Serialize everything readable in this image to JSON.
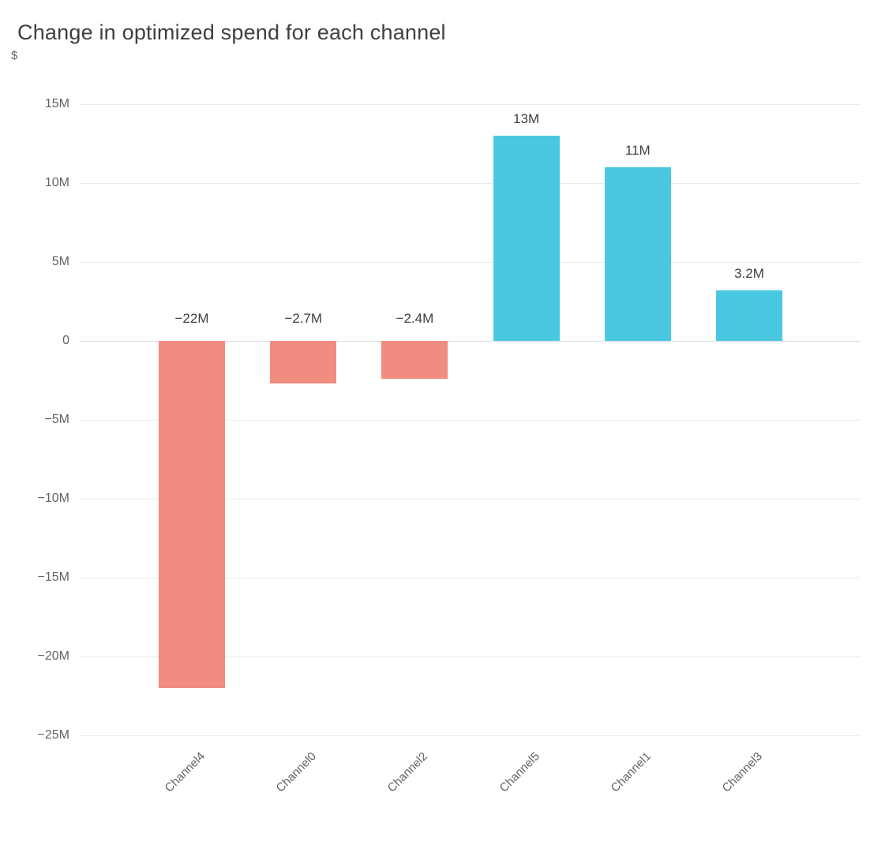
{
  "header": {
    "title": "Change in optimized spend for each channel",
    "y_axis_unit": "$"
  },
  "chart_data": {
    "type": "bar",
    "title": "Change in optimized spend for each channel",
    "xlabel": "",
    "ylabel": "$",
    "categories": [
      "Channel4",
      "Channel0",
      "Channel2",
      "Channel5",
      "Channel1",
      "Channel3"
    ],
    "values": [
      -22,
      -2.7,
      -2.4,
      13,
      11,
      3.2
    ],
    "value_unit": "millions of dollars",
    "bar_labels": [
      "−22M",
      "−2.7M",
      "−2.4M",
      "13M",
      "11M",
      "3.2M"
    ],
    "y_ticks": [
      15,
      10,
      5,
      0,
      -5,
      -10,
      -15,
      -20,
      -25
    ],
    "y_tick_labels": [
      "15M",
      "10M",
      "5M",
      "0",
      "−5M",
      "−10M",
      "−15M",
      "−20M",
      "−25M"
    ],
    "ylim": [
      -25,
      15
    ],
    "grid": true,
    "legend": "none",
    "x_label_rotation": -45,
    "negative_color": "#f08c80",
    "positive_color": "#4bc8e1",
    "grid_color": "#e8eaed",
    "axis_text_color": "#5f6368",
    "label_text_color": "#3c4043"
  }
}
